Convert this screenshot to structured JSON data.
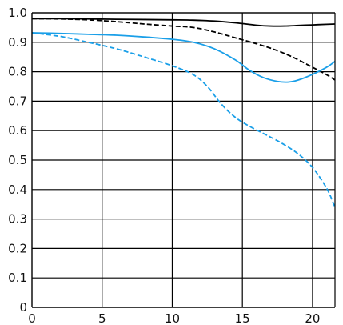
{
  "chart_data": {
    "type": "line",
    "title": "",
    "xlabel": "",
    "ylabel": "",
    "xlim": [
      0,
      21.6
    ],
    "ylim": [
      0,
      1.0
    ],
    "grid": true,
    "x_ticks": [
      "0",
      "5",
      "10",
      "15",
      "20"
    ],
    "y_ticks": [
      "0",
      "0.1",
      "0.2",
      "0.3",
      "0.4",
      "0.5",
      "0.6",
      "0.7",
      "0.8",
      "0.9",
      "1.0"
    ],
    "series": [
      {
        "color": "#000000",
        "style": "solid",
        "points": [
          [
            0,
            0.98
          ],
          [
            2,
            0.98
          ],
          [
            4,
            0.979
          ],
          [
            6,
            0.978
          ],
          [
            8,
            0.977
          ],
          [
            10,
            0.976
          ],
          [
            11.5,
            0.975
          ],
          [
            13,
            0.972
          ],
          [
            14.5,
            0.966
          ],
          [
            16,
            0.958
          ],
          [
            17,
            0.955
          ],
          [
            18,
            0.955
          ],
          [
            19,
            0.957
          ],
          [
            20,
            0.959
          ],
          [
            21,
            0.961
          ],
          [
            21.6,
            0.962
          ]
        ]
      },
      {
        "color": "#000000",
        "style": "dashed",
        "points": [
          [
            0,
            0.98
          ],
          [
            2,
            0.979
          ],
          [
            4,
            0.976
          ],
          [
            6,
            0.97
          ],
          [
            8,
            0.962
          ],
          [
            10,
            0.955
          ],
          [
            11.5,
            0.95
          ],
          [
            13,
            0.935
          ],
          [
            14.5,
            0.915
          ],
          [
            16,
            0.895
          ],
          [
            17,
            0.88
          ],
          [
            18,
            0.862
          ],
          [
            19,
            0.84
          ],
          [
            20,
            0.815
          ],
          [
            21,
            0.79
          ],
          [
            21.6,
            0.772
          ]
        ]
      },
      {
        "color": "#1a9fe8",
        "style": "solid",
        "points": [
          [
            0,
            0.932
          ],
          [
            2,
            0.93
          ],
          [
            4,
            0.927
          ],
          [
            6,
            0.924
          ],
          [
            8,
            0.918
          ],
          [
            10,
            0.91
          ],
          [
            11.5,
            0.9
          ],
          [
            13,
            0.878
          ],
          [
            14.5,
            0.84
          ],
          [
            15.5,
            0.805
          ],
          [
            16.5,
            0.78
          ],
          [
            17.5,
            0.767
          ],
          [
            18.3,
            0.765
          ],
          [
            19,
            0.772
          ],
          [
            20,
            0.791
          ],
          [
            21,
            0.815
          ],
          [
            21.6,
            0.835
          ]
        ]
      },
      {
        "color": "#1a9fe8",
        "style": "dashed",
        "points": [
          [
            0,
            0.932
          ],
          [
            2,
            0.92
          ],
          [
            4,
            0.9
          ],
          [
            6,
            0.878
          ],
          [
            8,
            0.85
          ],
          [
            10,
            0.82
          ],
          [
            11.5,
            0.79
          ],
          [
            12.5,
            0.75
          ],
          [
            13.5,
            0.69
          ],
          [
            14.5,
            0.645
          ],
          [
            15.5,
            0.615
          ],
          [
            17,
            0.578
          ],
          [
            18,
            0.552
          ],
          [
            19,
            0.52
          ],
          [
            20,
            0.475
          ],
          [
            21,
            0.405
          ],
          [
            21.6,
            0.34
          ]
        ]
      }
    ]
  }
}
